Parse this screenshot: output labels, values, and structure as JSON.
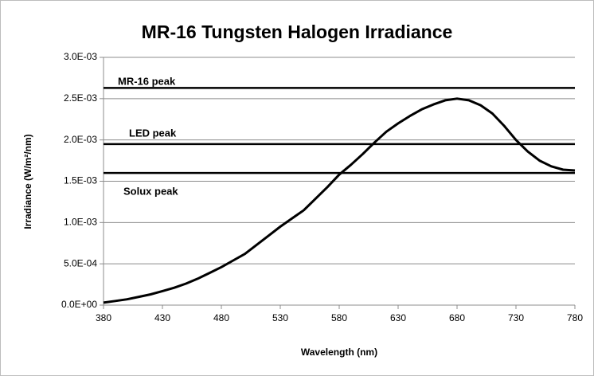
{
  "chart_data": {
    "type": "line",
    "title": "MR-16 Tungsten Halogen Irradiance",
    "x_label": "Wavelength (nm)",
    "y_label": "Irradiance (W/m²/nm)",
    "x": [
      380,
      390,
      400,
      410,
      420,
      430,
      440,
      450,
      460,
      470,
      480,
      490,
      500,
      510,
      520,
      530,
      540,
      550,
      560,
      570,
      580,
      590,
      600,
      610,
      620,
      630,
      640,
      650,
      660,
      670,
      680,
      690,
      700,
      710,
      720,
      730,
      740,
      750,
      760,
      770,
      780
    ],
    "series": [
      {
        "name": "MR-16",
        "color": "#000000",
        "values": [
          3e-05,
          5e-05,
          7e-05,
          0.0001,
          0.00013,
          0.00017,
          0.00021,
          0.00026,
          0.00032,
          0.00039,
          0.00046,
          0.00054,
          0.00062,
          0.00073,
          0.00084,
          0.00095,
          0.00105,
          0.00115,
          0.00129,
          0.00143,
          0.00158,
          0.0017,
          0.00183,
          0.00197,
          0.0021,
          0.0022,
          0.00229,
          0.00237,
          0.00243,
          0.00248,
          0.0025,
          0.00248,
          0.00242,
          0.00232,
          0.00217,
          0.002,
          0.00186,
          0.00175,
          0.00168,
          0.00164,
          0.00163
        ]
      }
    ],
    "reference_lines": [
      {
        "name": "MR-16 peak",
        "value": 0.00263
      },
      {
        "name": "LED peak",
        "value": 0.00195
      },
      {
        "name": "Solux peak",
        "value": 0.0016
      }
    ],
    "xlim": [
      380,
      780
    ],
    "xticks": [
      380,
      430,
      480,
      530,
      580,
      630,
      680,
      730,
      780
    ],
    "ylim": [
      0,
      0.003
    ],
    "yticks": [
      {
        "value": 0,
        "label": "0.0E+00"
      },
      {
        "value": 0.0005,
        "label": "5.0E-04"
      },
      {
        "value": 0.001,
        "label": "1.0E-03"
      },
      {
        "value": 0.0015,
        "label": "1.5E-03"
      },
      {
        "value": 0.002,
        "label": "2.0E-03"
      },
      {
        "value": 0.0025,
        "label": "2.5E-03"
      },
      {
        "value": 0.003,
        "label": "3.0E-03"
      }
    ],
    "grid": true
  }
}
